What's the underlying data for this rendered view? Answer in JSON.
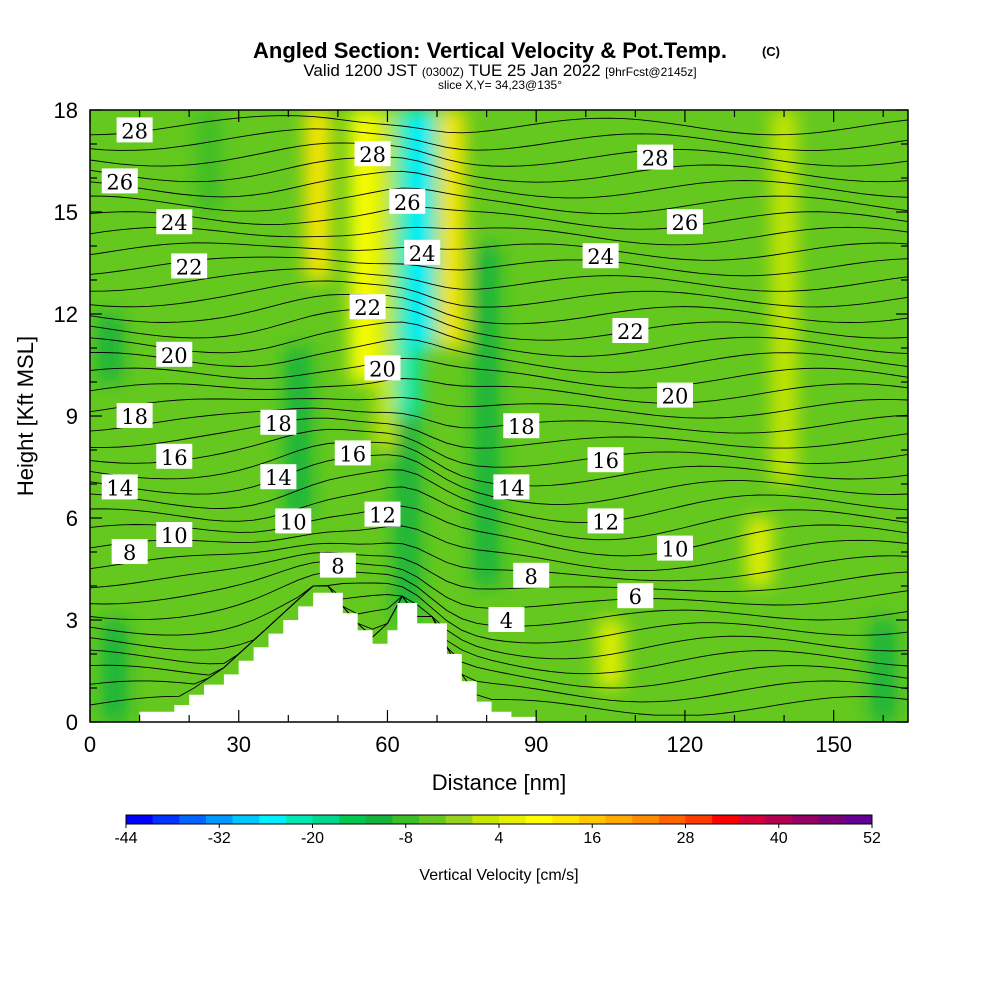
{
  "title": {
    "main": "Angled Section: Vertical Velocity & Pot.Temp.",
    "copyright": "(C)",
    "valid_prefix": "Valid 1200 JST",
    "utc": "(0300Z)",
    "date": "TUE 25 Jan 2022",
    "forecast": "[9hrFcst@2145z]",
    "slice": "slice X,Y= 34,23@135°"
  },
  "chart_data": {
    "type": "heatmap",
    "overlay": "contour",
    "xlabel": "Distance [nm]",
    "ylabel": "Height [Kft MSL]",
    "xlim": [
      0,
      165
    ],
    "ylim": [
      0,
      18
    ],
    "xticks": [
      0,
      30,
      60,
      90,
      120,
      150
    ],
    "yticks": [
      0,
      3,
      6,
      9,
      12,
      15,
      18
    ],
    "colorbar": {
      "label": "Vertical Velocity [cm/s]",
      "tick_labels": [
        "-44",
        "-32",
        "-20",
        "-8",
        "4",
        "16",
        "28",
        "40",
        "52"
      ],
      "min": -44,
      "max": 52,
      "step": 4,
      "colors": [
        "#0000ff",
        "#0033ff",
        "#0066ff",
        "#0099ff",
        "#00c8ff",
        "#00f0ff",
        "#00e8b4",
        "#00d890",
        "#00c850",
        "#14b43c",
        "#3cbe28",
        "#64c81e",
        "#96d21e",
        "#c8e600",
        "#e6f000",
        "#ffff00",
        "#ffe600",
        "#ffc800",
        "#ffaa00",
        "#ff8c00",
        "#ff6400",
        "#ff3c00",
        "#ff0000",
        "#d2003c",
        "#b40050",
        "#960064",
        "#780078",
        "#640096"
      ]
    },
    "terrain_profile": {
      "x": [
        0,
        10,
        10,
        17,
        17,
        20,
        20,
        23,
        23,
        27,
        27,
        30,
        30,
        33,
        33,
        36,
        36,
        39,
        39,
        42,
        42,
        45,
        45,
        51,
        51,
        54,
        54,
        57,
        57,
        60,
        60,
        62,
        62,
        66,
        66,
        72,
        72,
        75,
        75,
        78,
        78,
        81,
        81,
        85,
        85,
        90,
        90,
        165
      ],
      "height_kft": [
        0,
        0,
        0.3,
        0.3,
        0.5,
        0.5,
        0.8,
        0.8,
        1.1,
        1.1,
        1.4,
        1.4,
        1.8,
        1.8,
        2.2,
        2.2,
        2.6,
        2.6,
        3.0,
        3.0,
        3.4,
        3.4,
        3.8,
        3.8,
        3.2,
        3.2,
        2.7,
        2.7,
        2.3,
        2.3,
        2.7,
        2.7,
        3.5,
        3.5,
        2.9,
        2.9,
        2.0,
        2.0,
        1.2,
        1.2,
        0.6,
        0.6,
        0.3,
        0.3,
        0.15,
        0.15,
        0,
        0
      ]
    },
    "contours": {
      "variable": "Potential Temperature",
      "unit": "C",
      "interval": 1,
      "labels": [
        {
          "value": 28,
          "x": 9,
          "y": 17.4
        },
        {
          "value": 26,
          "x": 6,
          "y": 15.9
        },
        {
          "value": 24,
          "x": 17,
          "y": 14.7
        },
        {
          "value": 22,
          "x": 20,
          "y": 13.4
        },
        {
          "value": 20,
          "x": 17,
          "y": 10.8
        },
        {
          "value": 18,
          "x": 9,
          "y": 9.0
        },
        {
          "value": 16,
          "x": 17,
          "y": 7.8
        },
        {
          "value": 14,
          "x": 6,
          "y": 6.9
        },
        {
          "value": 10,
          "x": 17,
          "y": 5.5
        },
        {
          "value": 8,
          "x": 8,
          "y": 5.0
        },
        {
          "value": 18,
          "x": 38,
          "y": 8.8
        },
        {
          "value": 14,
          "x": 38,
          "y": 7.2
        },
        {
          "value": 10,
          "x": 41,
          "y": 5.9
        },
        {
          "value": 16,
          "x": 53,
          "y": 7.9
        },
        {
          "value": 8,
          "x": 50,
          "y": 4.6
        },
        {
          "value": 12,
          "x": 59,
          "y": 6.1
        },
        {
          "value": 28,
          "x": 57,
          "y": 16.7
        },
        {
          "value": 26,
          "x": 64,
          "y": 15.3
        },
        {
          "value": 24,
          "x": 67,
          "y": 13.8
        },
        {
          "value": 22,
          "x": 56,
          "y": 12.2
        },
        {
          "value": 20,
          "x": 59,
          "y": 10.4
        },
        {
          "value": 18,
          "x": 87,
          "y": 8.7
        },
        {
          "value": 14,
          "x": 85,
          "y": 6.9
        },
        {
          "value": 4,
          "x": 84,
          "y": 3.0
        },
        {
          "value": 8,
          "x": 89,
          "y": 4.3
        },
        {
          "value": 16,
          "x": 104,
          "y": 7.7
        },
        {
          "value": 12,
          "x": 104,
          "y": 5.9
        },
        {
          "value": 6,
          "x": 110,
          "y": 3.7
        },
        {
          "value": 10,
          "x": 118,
          "y": 5.1
        },
        {
          "value": 24,
          "x": 103,
          "y": 13.7
        },
        {
          "value": 22,
          "x": 109,
          "y": 11.5
        },
        {
          "value": 20,
          "x": 118,
          "y": 9.6
        },
        {
          "value": 28,
          "x": 114,
          "y": 16.6
        },
        {
          "value": 26,
          "x": 120,
          "y": 14.7
        }
      ]
    },
    "field_features": [
      {
        "x": 46,
        "y_range": [
          13,
          18
        ],
        "v": 20
      },
      {
        "x": 55,
        "y_range": [
          10,
          18
        ],
        "v": 18
      },
      {
        "x": 60,
        "y_range": [
          8,
          18
        ],
        "v": 8
      },
      {
        "x": 64,
        "y_range": [
          9,
          18
        ],
        "v": -18
      },
      {
        "x": 67,
        "y_range": [
          11,
          18
        ],
        "v": -22
      },
      {
        "x": 73,
        "y_range": [
          11,
          18
        ],
        "v": 20
      },
      {
        "x": 42,
        "y_range": [
          6,
          11
        ],
        "v": -6
      },
      {
        "x": 64,
        "y_range": [
          3,
          9
        ],
        "v": -8
      },
      {
        "x": 80,
        "y_range": [
          4,
          14
        ],
        "v": -6
      },
      {
        "x": 135,
        "y_range": [
          4,
          6
        ],
        "v": 12
      },
      {
        "x": 105,
        "y_range": [
          1,
          3
        ],
        "v": 14
      },
      {
        "x": 160,
        "y_range": [
          0,
          3
        ],
        "v": -6
      },
      {
        "x": 24,
        "y_range": [
          15,
          18
        ],
        "v": -4
      },
      {
        "x": 4,
        "y_range": [
          10,
          12
        ],
        "v": -6
      },
      {
        "x": 5,
        "y_range": [
          0,
          3
        ],
        "v": -8
      },
      {
        "x": 140,
        "y_range": [
          7,
          18
        ],
        "v": 10
      }
    ]
  }
}
